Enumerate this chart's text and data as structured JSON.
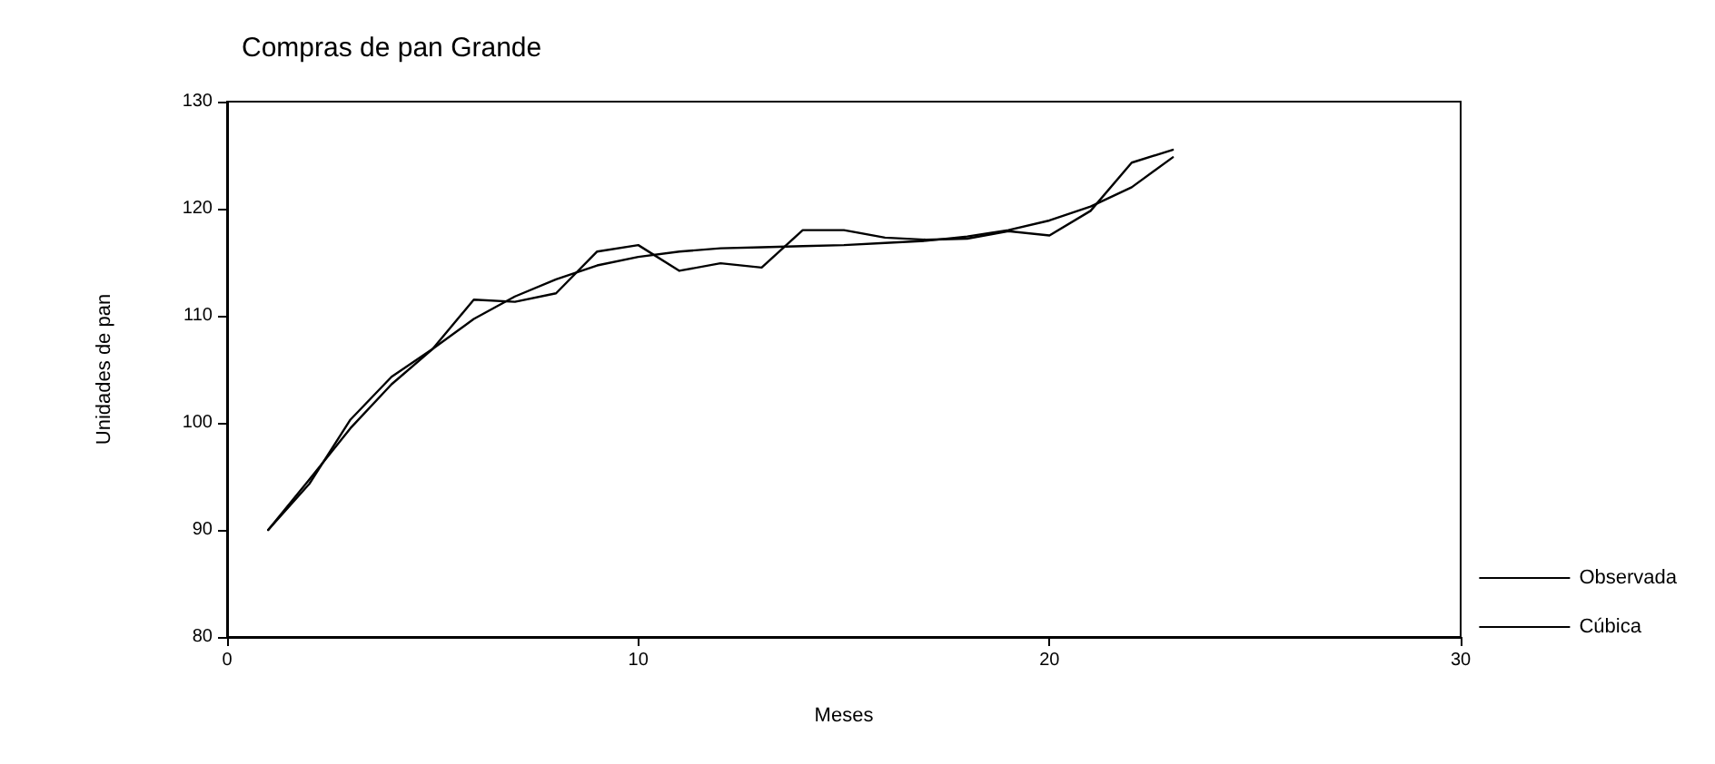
{
  "chart_data": {
    "type": "line",
    "title": "Compras de pan Grande",
    "xlabel": "Meses",
    "ylabel": "Unidades de pan",
    "x": [
      1,
      2,
      3,
      4,
      5,
      6,
      7,
      8,
      9,
      10,
      11,
      12,
      13,
      14,
      15,
      16,
      17,
      18,
      19,
      20,
      21,
      22,
      23
    ],
    "series": [
      {
        "name": "Observada",
        "color": "#000000",
        "values": [
          90,
          94.3,
          100.3,
          104.3,
          106.9,
          111.5,
          111.3,
          112.1,
          116,
          116.6,
          114.2,
          114.9,
          114.5,
          118,
          118,
          117.3,
          117.1,
          117.2,
          117.9,
          117.5,
          119.8,
          124.3,
          125.5
        ]
      },
      {
        "name": "Cúbica",
        "color": "#000000",
        "values": [
          90,
          94.7,
          99.5,
          103.6,
          106.9,
          109.7,
          111.8,
          113.4,
          114.7,
          115.5,
          116,
          116.3,
          116.4,
          116.5,
          116.6,
          116.8,
          117,
          117.4,
          118,
          118.9,
          120.2,
          122,
          124.8
        ]
      }
    ],
    "xlim": [
      0,
      30
    ],
    "xticks": [
      0,
      10,
      20,
      30
    ],
    "ylim": [
      80,
      130
    ],
    "yticks": [
      80,
      90,
      100,
      110,
      120,
      130
    ],
    "grid": false,
    "legend": "right",
    "marker": "none",
    "line_style": "solid"
  }
}
